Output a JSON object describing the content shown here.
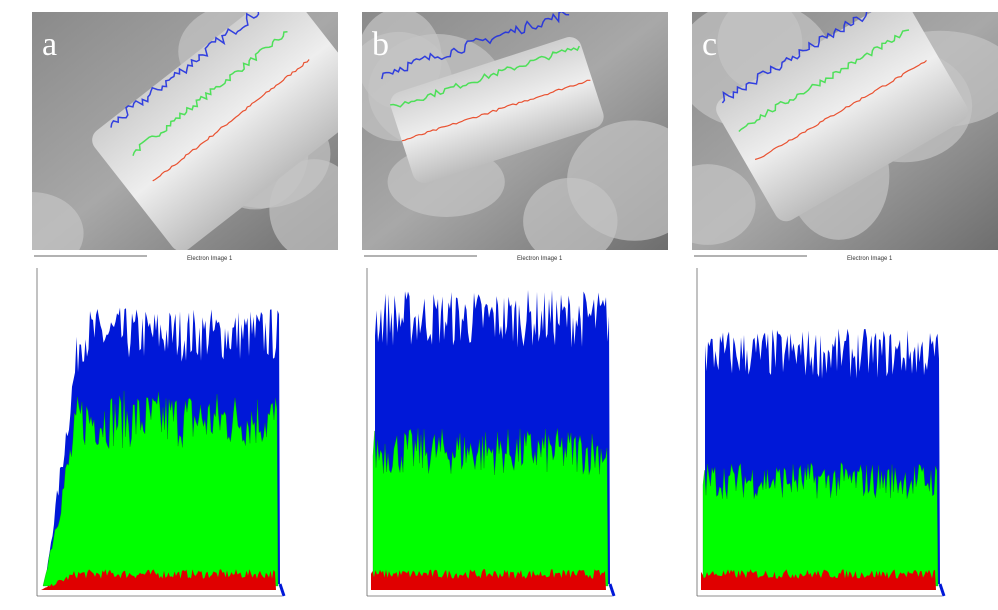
{
  "panels": [
    {
      "label": "a",
      "caption": "Electron Image 1"
    },
    {
      "label": "b",
      "caption": "Electron Image 1"
    },
    {
      "label": "c",
      "caption": "Electron Image 1"
    }
  ]
}
